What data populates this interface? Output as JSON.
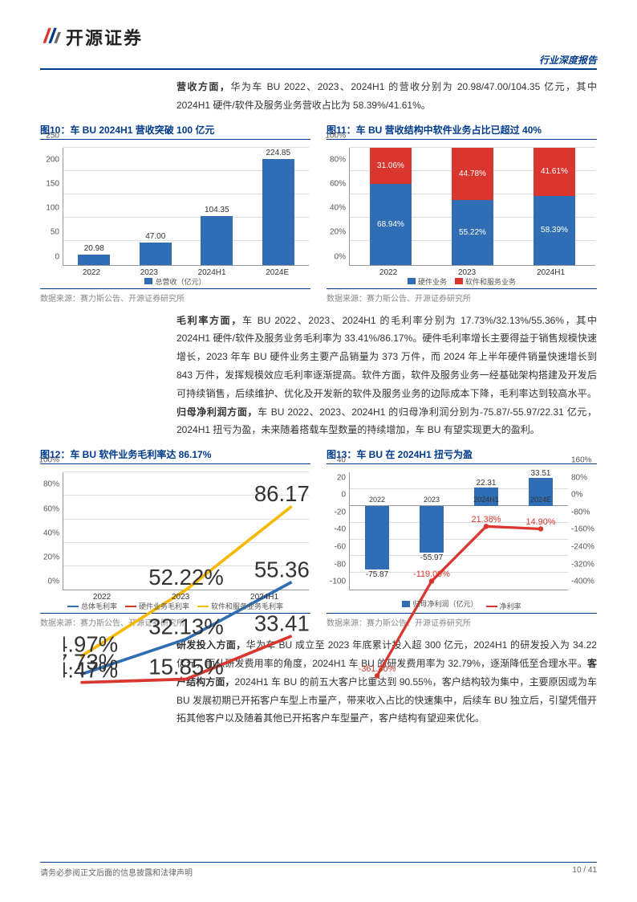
{
  "header": {
    "company": "开源证券",
    "doc_type": "行业深度报告"
  },
  "colors": {
    "brand": "#003a8c",
    "blue": "#2f6db5",
    "red": "#d9362f",
    "yellow": "#f6b800",
    "grid": "#dddddd"
  },
  "para1": {
    "lead": "营收方面，",
    "text": "华为车 BU 2022、2023、2024H1 的营收分别为 20.98/47.00/104.35 亿元，其中 2024H1 硬件/软件及服务业务营收占比为 58.39%/41.61%。"
  },
  "chart10": {
    "title": "图10：车 BU 2024H1 营收突破 100 亿元",
    "type": "bar",
    "ylim": [
      0,
      250
    ],
    "ytick_step": 50,
    "categories": [
      "2022",
      "2023",
      "2024H1",
      "2024E"
    ],
    "values": [
      20.98,
      47.0,
      104.35,
      224.85
    ],
    "bar_color": "#2f6db5",
    "legend": [
      "总营收（亿元）"
    ],
    "source": "数据来源：赛力斯公告、开源证券研究所"
  },
  "chart11": {
    "title": "图11：车 BU 营收结构中软件业务占比已超过 40%",
    "type": "stacked-bar",
    "ylim": [
      0,
      100
    ],
    "ytick_step": 20,
    "y_suffix": "%",
    "categories": [
      "2022",
      "2023",
      "2024H1"
    ],
    "series": [
      {
        "name": "硬件业务",
        "color": "#2f6db5",
        "values": [
          68.94,
          55.22,
          58.39
        ]
      },
      {
        "name": "软件和服务业务",
        "color": "#d9362f",
        "values": [
          31.06,
          44.78,
          41.61
        ]
      }
    ],
    "source": "数据来源：赛力斯公告、开源证券研究所"
  },
  "para2": {
    "lead": "毛利率方面，",
    "text": "车 BU 2022、2023、2024H1 的毛利率分别为 17.73%/32.13%/55.36%，其中 2024H1 硬件/软件及服务业务毛利率为 33.41%/86.17%。硬件毛利率增长主要得益于销售规模快速增长，2023 年车 BU 硬件业务主要产品销量为 373 万件，而 2024 年上半年硬件销量快速增长到 843 万件，发挥规模效应毛利率逐渐提高。软件方面，软件及服务业务一经基础架构搭建及开发后可持续销售，后续维护、优化及开发新的软件及服务业务的边际成本下降，毛利率达到较高水平。",
    "lead2": "归母净利润方面，",
    "text2": "车 BU 2022、2023、2024H1 的归母净利润分别为-75.87/-55.97/22.31 亿元，2024H1 扭亏为盈，未来随着搭载车型数量的持续增加，车 BU 有望实现更大的盈利。"
  },
  "chart12": {
    "title": "图12：车 BU 软件业务毛利率达 86.17%",
    "type": "line",
    "ylim": [
      0,
      100
    ],
    "ytick_step": 20,
    "y_suffix": "%",
    "categories": [
      "2022",
      "2023",
      "2024H1"
    ],
    "series": [
      {
        "name": "总体毛利率",
        "color": "#2f6db5",
        "values": [
          17.73,
          32.13,
          55.36
        ]
      },
      {
        "name": "硬件业务毛利率",
        "color": "#d9362f",
        "values": [
          14.47,
          15.85,
          33.41
        ]
      },
      {
        "name": "软件和服务业务毛利率",
        "color": "#f6b800",
        "values": [
          24.97,
          52.22,
          86.17
        ]
      }
    ],
    "source": "数据来源：赛力斯公告、开源证券研究所"
  },
  "chart13": {
    "title": "图13：车 BU 在 2024H1 扭亏为盈",
    "type": "combo",
    "categories": [
      "2022",
      "2023",
      "2024H1",
      "2024E"
    ],
    "bar": {
      "name": "归母净利润（亿元）",
      "color": "#2f6db5",
      "ylim": [
        -100,
        40
      ],
      "ytick_step": 20,
      "values": [
        -75.87,
        -55.97,
        22.31,
        33.51
      ]
    },
    "line": {
      "name": "净利率",
      "color": "#d9362f",
      "ylim": [
        -400,
        160
      ],
      "ytick_step": 80,
      "y_suffix": "%",
      "values": [
        -361.8,
        -119.09,
        21.38,
        14.9
      ]
    },
    "source": "数据来源：赛力斯公告、开源证券研究所"
  },
  "para3": {
    "lead": "研发投入方面，",
    "text": "华为车 BU 成立至 2023 年底累计投入超 300 亿元，2024H1 的研发投入为 34.22 亿元，而从研发费用率的角度，2024H1 车 BU 的研发费用率为 32.79%，逐渐降低至合理水平。",
    "lead2": "客户结构方面，",
    "text2": "2024H1 车 BU 的前五大客户比重达到 90.55%，客户结构较为集中，主要原因或为车 BU 发展初期已开拓客户车型上市量产，带来收入占比的快速集中，后续车 BU 独立后，引望凭借开拓其他客户以及随着其他已开拓客户车型量产，客户结构有望迎来优化。"
  },
  "footer": {
    "left": "请务必参阅正文后面的信息披露和法律声明",
    "right": "10 / 41"
  }
}
